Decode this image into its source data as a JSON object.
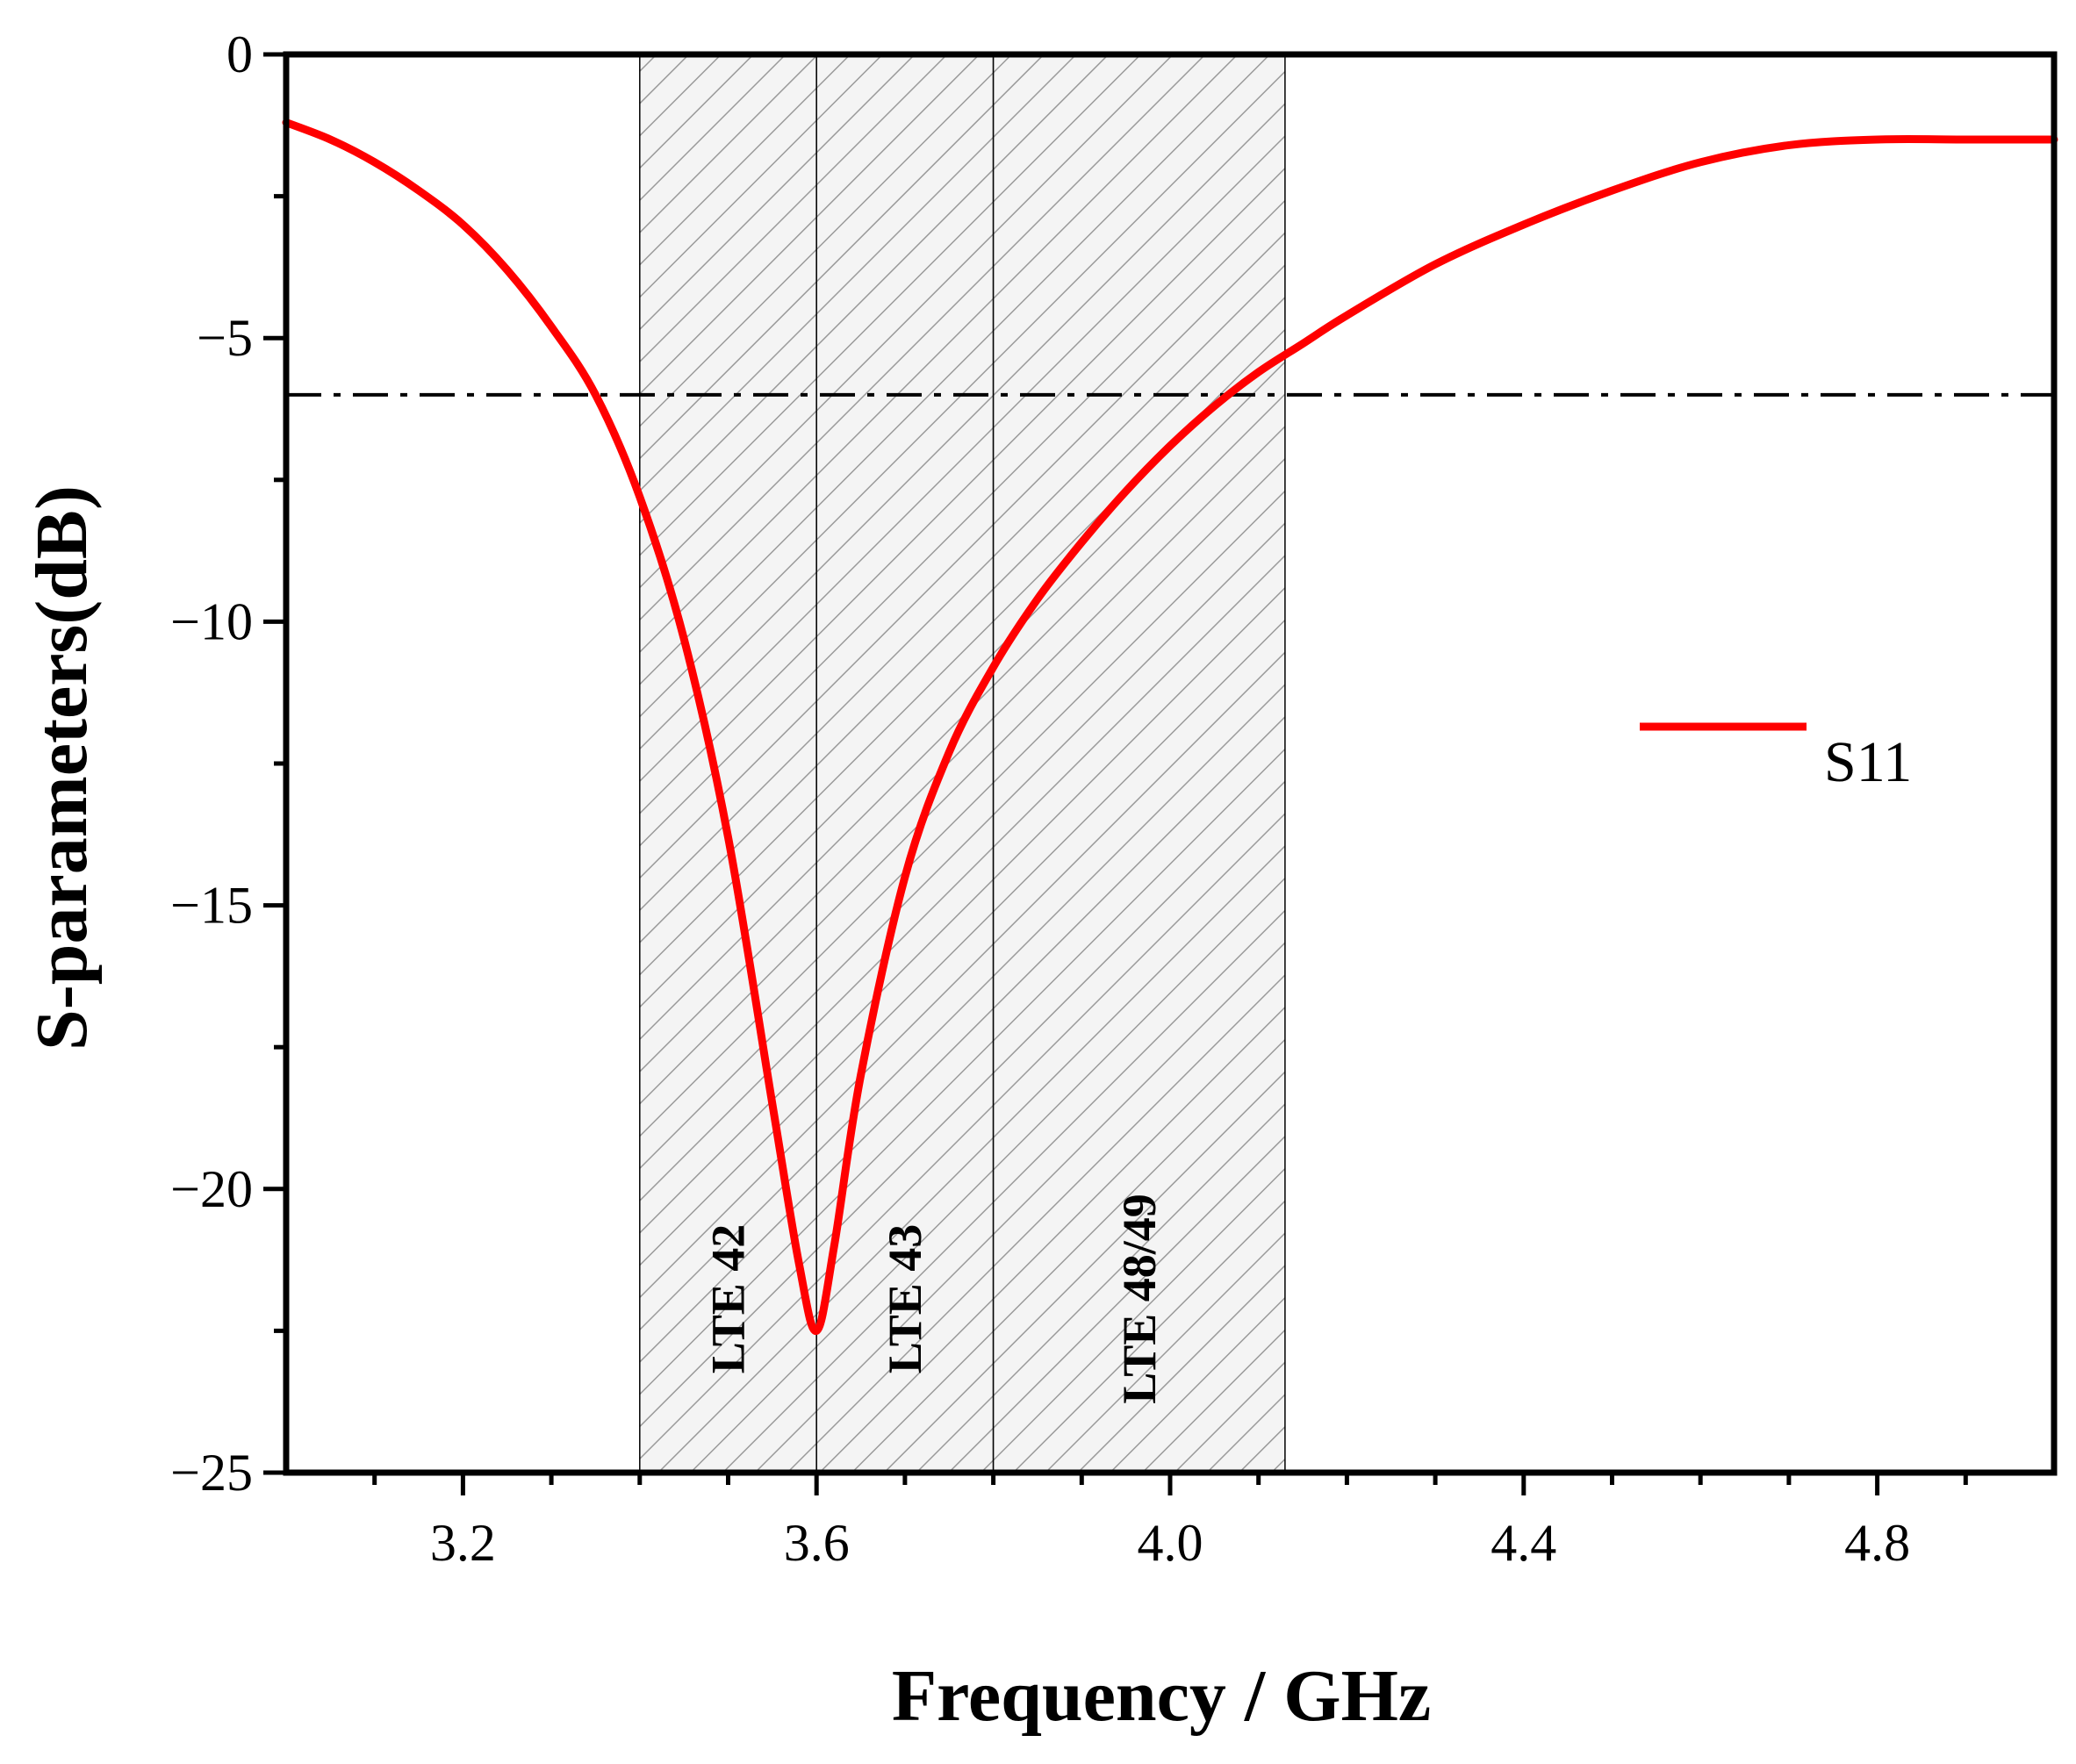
{
  "chart_data": {
    "type": "line",
    "title": "",
    "xlabel": "Frequency / GHz",
    "ylabel": "S-parameters(dB)",
    "xlim": [
      3.0,
      5.0
    ],
    "ylim": [
      -25,
      0
    ],
    "xticks": [
      3.2,
      3.6,
      4.0,
      4.4,
      4.8
    ],
    "xtick_labels": [
      "3.2",
      "3.6",
      "4.0",
      "4.4",
      "4.8"
    ],
    "yticks": [
      0,
      -5,
      -10,
      -15,
      -20,
      -25
    ],
    "ytick_labels": [
      "0",
      "−5",
      "−10",
      "−15",
      "−20",
      "−25"
    ],
    "grid": false,
    "legend": {
      "position": "right",
      "entries": [
        "S11"
      ]
    },
    "reference_line": {
      "y": -6,
      "style": "dash-dot",
      "color": "#000000"
    },
    "bands": [
      {
        "label": "LTE 42",
        "x_start": 3.4,
        "x_end": 3.6
      },
      {
        "label": "LTE 43",
        "x_start": 3.6,
        "x_end": 3.8
      },
      {
        "label": "LTE 48/49",
        "x_start": 3.8,
        "x_end": 4.13
      }
    ],
    "series": [
      {
        "name": "S11",
        "color": "#ff0000",
        "x": [
          3.0,
          3.05,
          3.1,
          3.15,
          3.2,
          3.25,
          3.3,
          3.35,
          3.4,
          3.45,
          3.5,
          3.55,
          3.58,
          3.6,
          3.62,
          3.65,
          3.7,
          3.75,
          3.8,
          3.85,
          3.9,
          3.95,
          4.0,
          4.05,
          4.1,
          4.15,
          4.2,
          4.3,
          4.4,
          4.5,
          4.6,
          4.7,
          4.8,
          4.9,
          5.0
        ],
        "y": [
          -1.2,
          -1.5,
          -1.9,
          -2.4,
          -3.0,
          -3.8,
          -4.8,
          -6.0,
          -7.8,
          -10.3,
          -13.8,
          -18.5,
          -21.3,
          -22.5,
          -21.0,
          -18.0,
          -14.5,
          -12.3,
          -10.8,
          -9.6,
          -8.6,
          -7.7,
          -6.9,
          -6.2,
          -5.6,
          -5.1,
          -4.6,
          -3.7,
          -3.0,
          -2.4,
          -1.9,
          -1.6,
          -1.5,
          -1.5,
          -1.5
        ]
      }
    ]
  },
  "colors": {
    "series": "#ff0000",
    "band_fill": "#f4f4f4",
    "band_hatch": "#9a9a9a",
    "axis": "#000000"
  }
}
